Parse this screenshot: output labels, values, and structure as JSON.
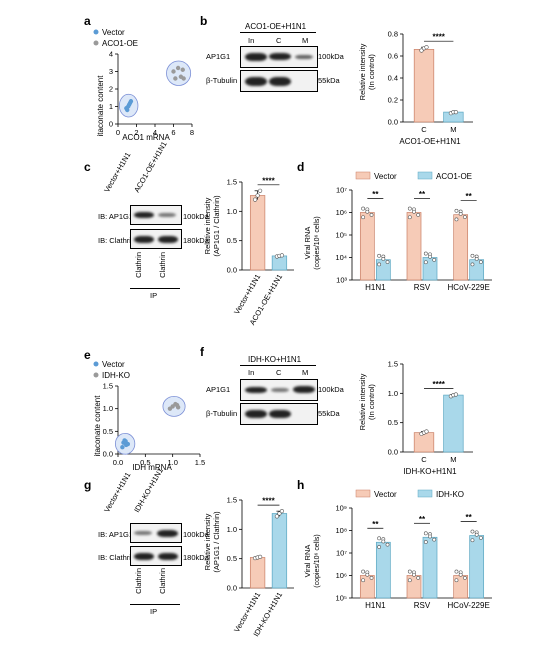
{
  "panels": {
    "a": "a",
    "b": "b",
    "c": "c",
    "d": "d",
    "e": "e",
    "f": "f",
    "g": "g",
    "h": "h"
  },
  "colors": {
    "vector": "#f6cbb7",
    "oe": "#a9d8ea",
    "dot_vector": "#5b9bd5",
    "dot_oe": "#9a9a9a",
    "ellipse_fill": "#dde8f8",
    "ellipse_stroke": "#7b8fd6"
  },
  "panel_a": {
    "legend": [
      "Vector",
      "ACO1-OE"
    ],
    "xlabel": "ACO1 mRNA",
    "ylabel": "itaconate content",
    "xticks": [
      "0",
      "2",
      "4",
      "6",
      "8"
    ],
    "yticks": [
      "0",
      "1",
      "2",
      "3",
      "4"
    ]
  },
  "panel_b": {
    "header": "ACO1-OE+H1N1",
    "lanes": [
      "In",
      "C",
      "M"
    ],
    "rows": [
      "AP1G1",
      "β-Tubulin"
    ],
    "sizes": [
      "100kDa",
      "55kDa"
    ],
    "ylabel": [
      "Relative intensity",
      "(In control)"
    ],
    "yticks": [
      "0.0",
      "0.2",
      "0.4",
      "0.6",
      "0.8"
    ],
    "categories": [
      "C",
      "M"
    ],
    "sig": "****",
    "xlabel": "ACO1-OE+H1N1"
  },
  "panel_c": {
    "lanes": [
      "Vector+H1N1",
      "ACO1-OE+H1N1"
    ],
    "rows": [
      "IB: AP1G1",
      "IB: Clathrin"
    ],
    "sizes": [
      "100kDa",
      "180kDa"
    ],
    "ip_lanes": [
      "Clathrin",
      "Clathrin"
    ],
    "ip": "IP",
    "ylabel": [
      "Relative intensity",
      "(AP1G1 / Clathrin)"
    ],
    "yticks": [
      "0.0",
      "0.5",
      "1.0",
      "1.5"
    ],
    "categories": [
      "Vector+H1N1",
      "ACO1-OE+H1N1"
    ],
    "sig": "****"
  },
  "panel_d": {
    "legend": [
      "Vector",
      "ACO1-OE"
    ],
    "ylabel": [
      "Viral RNA",
      "(copies/10⁶ cells)"
    ],
    "yticks": [
      "10³",
      "10⁴",
      "10⁵",
      "10⁶",
      "10⁷"
    ],
    "categories": [
      "H1N1",
      "RSV",
      "HCoV-229E"
    ],
    "sig": [
      "**",
      "**",
      "**"
    ]
  },
  "panel_e": {
    "legend": [
      "Vector",
      "IDH-KO"
    ],
    "xlabel": "IDH mRNA",
    "ylabel": "itaconate content",
    "xticks": [
      "0.0",
      "0.5",
      "1.0",
      "1.5"
    ],
    "yticks": [
      "0.0",
      "0.5",
      "1.0",
      "1.5"
    ]
  },
  "panel_f": {
    "header": "IDH-KO+H1N1",
    "lanes": [
      "In",
      "C",
      "M"
    ],
    "rows": [
      "AP1G1",
      "β-Tubulin"
    ],
    "sizes": [
      "100kDa",
      "55kDa"
    ],
    "ylabel": [
      "Relative intensity",
      "(In control)"
    ],
    "yticks": [
      "0.0",
      "0.5",
      "1.0",
      "1.5"
    ],
    "categories": [
      "C",
      "M"
    ],
    "sig": "****",
    "xlabel": "IDH-KO+H1N1"
  },
  "panel_g": {
    "lanes": [
      "Vector+H1N1",
      "IDH-KO+H1N1"
    ],
    "rows": [
      "IB: AP1G1",
      "IB: Clathrin"
    ],
    "sizes": [
      "100kDa",
      "180kDa"
    ],
    "ip_lanes": [
      "Clathrin",
      "Clathrin"
    ],
    "ip": "IP",
    "ylabel": [
      "Relative intensity",
      "(AP1G1 / Clathrin)"
    ],
    "yticks": [
      "0.0",
      "0.5",
      "1.0",
      "1.5"
    ],
    "categories": [
      "Vector+H1N1",
      "IDH-KO+H1N1"
    ],
    "sig": "****"
  },
  "panel_h": {
    "legend": [
      "Vector",
      "IDH-KO"
    ],
    "ylabel": [
      "Viral RNA",
      "(copies/10⁶ cells)"
    ],
    "yticks": [
      "10⁵",
      "10⁶",
      "10⁷",
      "10⁸",
      "10⁹"
    ],
    "categories": [
      "H1N1",
      "RSV",
      "HCoV-229E"
    ],
    "sig": [
      "**",
      "**",
      "**"
    ]
  },
  "chart_data": [
    {
      "panel": "a",
      "type": "scatter",
      "series": [
        {
          "name": "Vector",
          "points": [
            [
              1.0,
              0.8
            ],
            [
              1.2,
              1.1
            ],
            [
              1.3,
              1.2
            ],
            [
              1.1,
              1.0
            ],
            [
              0.9,
              0.9
            ],
            [
              1.4,
              1.3
            ]
          ]
        },
        {
          "name": "ACO1-OE",
          "points": [
            [
              6.0,
              3.0
            ],
            [
              6.5,
              3.2
            ],
            [
              7.0,
              3.1
            ],
            [
              6.2,
              2.6
            ],
            [
              6.8,
              2.7
            ],
            [
              7.1,
              2.6
            ]
          ]
        }
      ],
      "xlim": [
        0,
        8
      ],
      "ylim": [
        0,
        4
      ]
    },
    {
      "panel": "b",
      "type": "bar",
      "categories": [
        "C",
        "M"
      ],
      "values": [
        0.66,
        0.09
      ],
      "points": [
        [
          0.65,
          0.67,
          0.68
        ],
        [
          0.08,
          0.09,
          0.09
        ]
      ],
      "ylim": [
        0,
        0.8
      ]
    },
    {
      "panel": "c",
      "type": "bar",
      "categories": [
        "Vector+H1N1",
        "ACO1-OE+H1N1"
      ],
      "values": [
        1.27,
        0.24
      ],
      "points": [
        [
          1.2,
          1.27,
          1.35
        ],
        [
          0.23,
          0.24,
          0.25
        ]
      ],
      "ylim": [
        0,
        1.5
      ]
    },
    {
      "panel": "d",
      "type": "bar",
      "categories": [
        "H1N1",
        "RSV",
        "HCoV-229E"
      ],
      "series": [
        {
          "name": "Vector",
          "values": [
            1000000,
            1000000,
            800000
          ]
        },
        {
          "name": "ACO1-OE",
          "values": [
            8000,
            10000,
            8000
          ]
        }
      ],
      "ylim": [
        1000,
        10000000
      ],
      "yscale": "log"
    },
    {
      "panel": "e",
      "type": "scatter",
      "series": [
        {
          "name": "Vector",
          "points": [
            [
              0.1,
              0.25
            ],
            [
              0.15,
              0.2
            ],
            [
              0.12,
              0.3
            ],
            [
              0.08,
              0.15
            ],
            [
              0.18,
              0.22
            ],
            [
              0.14,
              0.28
            ]
          ]
        },
        {
          "name": "IDH-KO",
          "points": [
            [
              1.0,
              1.05
            ],
            [
              1.05,
              1.1
            ],
            [
              1.1,
              1.03
            ],
            [
              0.95,
              1.0
            ],
            [
              1.08,
              1.08
            ]
          ]
        }
      ],
      "xlim": [
        0,
        1.5
      ],
      "ylim": [
        0,
        1.5
      ]
    },
    {
      "panel": "f",
      "type": "bar",
      "categories": [
        "C",
        "M"
      ],
      "values": [
        0.33,
        0.97
      ],
      "points": [
        [
          0.31,
          0.33,
          0.35
        ],
        [
          0.95,
          0.97,
          0.98
        ]
      ],
      "ylim": [
        0,
        1.5
      ]
    },
    {
      "panel": "g",
      "type": "bar",
      "categories": [
        "Vector+H1N1",
        "IDH-KO+H1N1"
      ],
      "values": [
        0.52,
        1.27
      ],
      "points": [
        [
          0.51,
          0.52,
          0.53
        ],
        [
          1.22,
          1.27,
          1.31
        ]
      ],
      "ylim": [
        0,
        1.5
      ]
    },
    {
      "panel": "h",
      "type": "bar",
      "categories": [
        "H1N1",
        "RSV",
        "HCoV-229E"
      ],
      "series": [
        {
          "name": "Vector",
          "values": [
            1000000,
            1000000,
            1000000
          ]
        },
        {
          "name": "IDH-KO",
          "values": [
            30000000,
            50000000,
            60000000
          ]
        }
      ],
      "ylim": [
        100000,
        1000000000
      ],
      "yscale": "log"
    }
  ]
}
